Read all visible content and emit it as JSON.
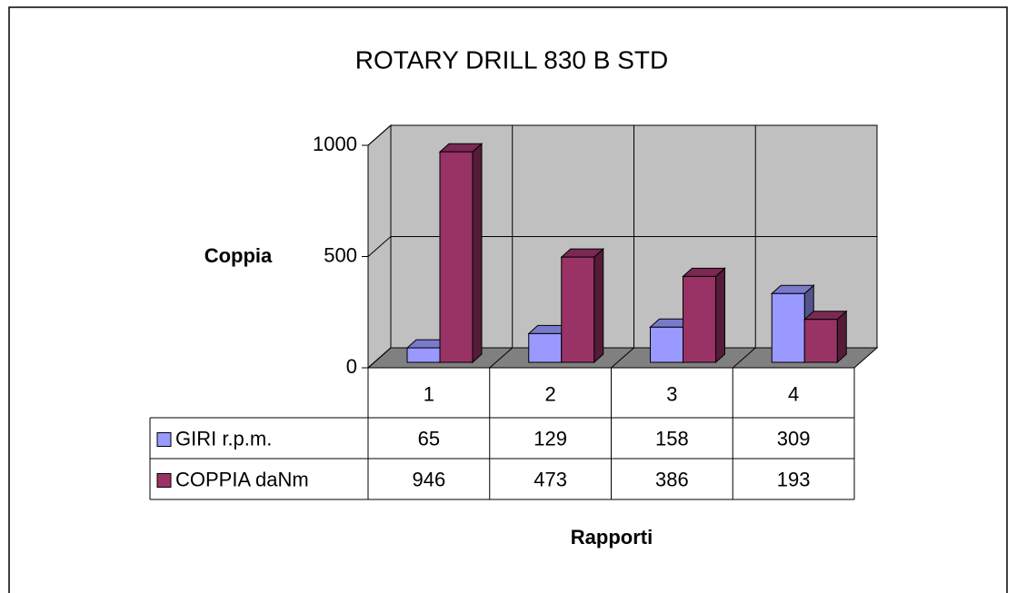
{
  "chart_data": {
    "type": "bar3d",
    "title": "ROTARY DRILL 830 B STD",
    "y_label": "Coppia",
    "x_label": "Rapporti",
    "categories": [
      "1",
      "2",
      "3",
      "4"
    ],
    "series": [
      {
        "name": "GIRI r.p.m.",
        "color": "#9999ff",
        "values": [
          65,
          129,
          158,
          309
        ]
      },
      {
        "name": "COPPIA daNm",
        "color": "#993366",
        "values": [
          946,
          473,
          386,
          193
        ]
      }
    ],
    "ylim": [
      0,
      1000
    ],
    "yticks": [
      0,
      500,
      1000
    ],
    "grid": true
  }
}
